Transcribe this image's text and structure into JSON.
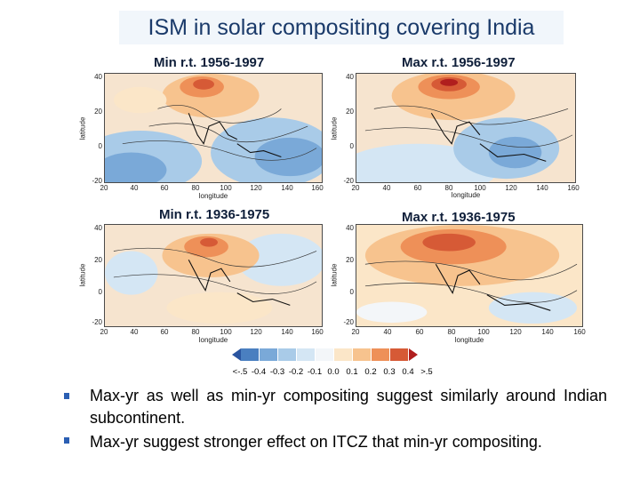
{
  "slide": {
    "title": "ISM in solar compositing covering India"
  },
  "panels": [
    {
      "title": "Min r.t. 1956-1997",
      "yticks": [
        "40",
        "20",
        "0",
        "-20"
      ],
      "xticks": [
        "20",
        "40",
        "60",
        "80",
        "100",
        "120",
        "140",
        "160"
      ],
      "xlabel": "longitude",
      "ylabel": "latitude"
    },
    {
      "title": "Max r.t. 1956-1997",
      "yticks": [
        "40",
        "20",
        "0",
        "-20"
      ],
      "xticks": [
        "20",
        "40",
        "60",
        "80",
        "100",
        "120",
        "140",
        "160"
      ],
      "xlabel": "longitude",
      "ylabel": "latitude"
    },
    {
      "title": "Min r.t. 1936-1975",
      "yticks": [
        "40",
        "20",
        "0",
        "-20"
      ],
      "xticks": [
        "20",
        "40",
        "60",
        "80",
        "100",
        "120",
        "140",
        "160"
      ],
      "xlabel": "longitude",
      "ylabel": "latitude"
    },
    {
      "title": "Max r.t. 1936-1975",
      "yticks": [
        "40",
        "20",
        "0",
        "-20"
      ],
      "xticks": [
        "20",
        "40",
        "60",
        "80",
        "100",
        "120",
        "140",
        "160"
      ],
      "xlabel": "longitude",
      "ylabel": "latitude"
    }
  ],
  "colorbar": {
    "labels": [
      "<-.5",
      "-0.4",
      "-0.3",
      "-0.2",
      "-0.1",
      "0.0",
      "0.1",
      "0.2",
      "0.3",
      "0.4",
      ">.5"
    ],
    "colors": [
      "#2a55a0",
      "#4a7fc0",
      "#7aa9d8",
      "#a9cbe8",
      "#d4e6f4",
      "#f3f6f9",
      "#fbe6c8",
      "#f7c38e",
      "#ee9058",
      "#d65a36",
      "#b01e1e"
    ]
  },
  "bullets": [
    "Max-yr as well as min-yr compositing suggest similarly around Indian subcontinent.",
    "Max-yr suggest stronger effect on ITCZ that min-yr compositing."
  ]
}
